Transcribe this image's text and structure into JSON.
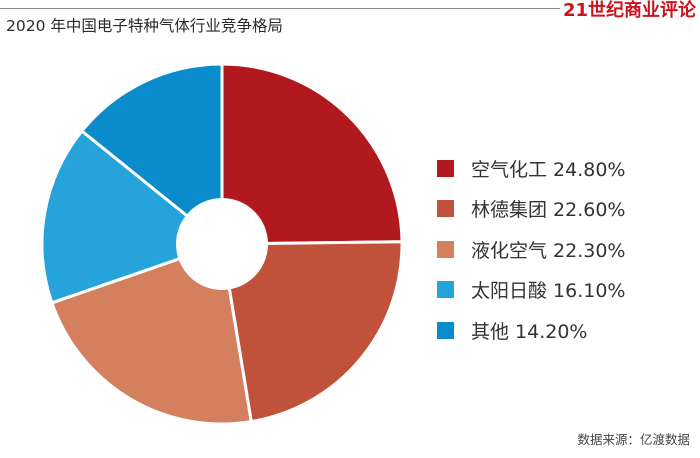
{
  "header": {
    "brand": "21世纪商业评论",
    "title": "2020 年中国电子特种气体行业竞争格局"
  },
  "chart_data": {
    "type": "pie",
    "title": "2020 年中国电子特种气体行业竞争格局",
    "slices": [
      {
        "label": "空气化工 24.80%",
        "name": "空气化工",
        "value": 24.8,
        "color": "#b2191f"
      },
      {
        "label": "林德集团 22.60%",
        "name": "林德集团",
        "value": 22.6,
        "color": "#c0513a"
      },
      {
        "label": "液化空气 22.30%",
        "name": "液化空气",
        "value": 22.3,
        "color": "#d4805e"
      },
      {
        "label": "太阳日酸 16.10%",
        "name": "太阳日酸",
        "value": 16.1,
        "color": "#27a3dc"
      },
      {
        "label": "其他 14.20%",
        "name": "其他",
        "value": 14.2,
        "color": "#0a8ccc"
      }
    ],
    "legend_position": "right",
    "donut": true
  },
  "footer": {
    "source": "数据来源：亿渡数据"
  }
}
